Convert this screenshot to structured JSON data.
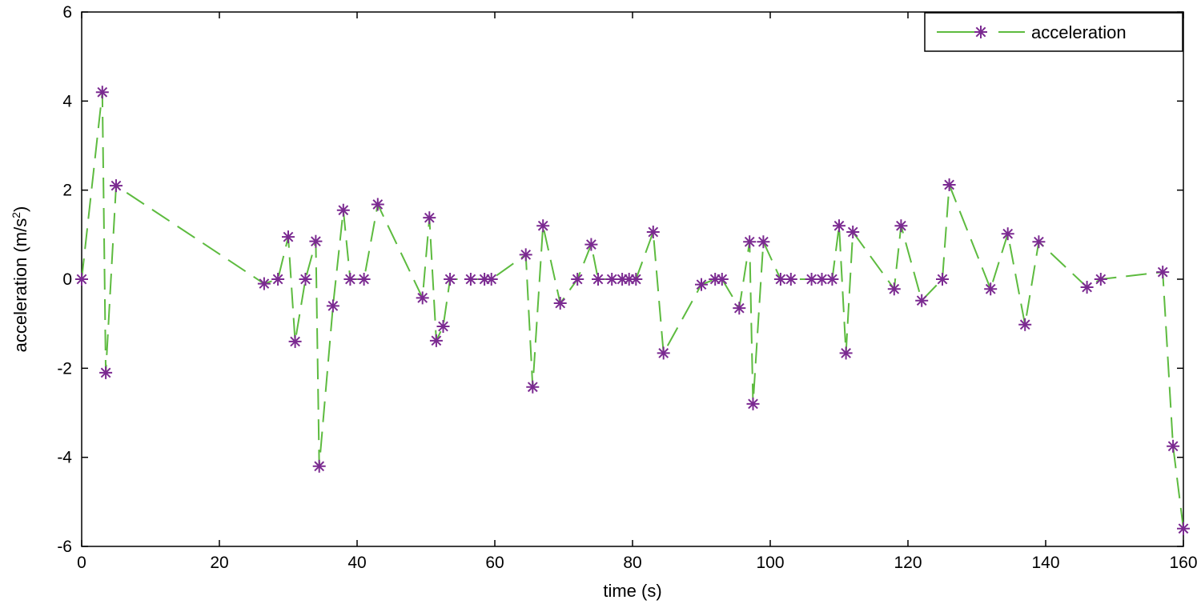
{
  "chart_data": {
    "type": "line",
    "title": "",
    "xlabel": "time (s)",
    "ylabel_main": "acceleration (m/s",
    "ylabel_sup": "2",
    "ylabel_tail": ")",
    "xlim": [
      0,
      160
    ],
    "ylim": [
      -6,
      6
    ],
    "xticks": [
      0,
      20,
      40,
      60,
      80,
      100,
      120,
      140,
      160
    ],
    "yticks": [
      -6,
      -4,
      -2,
      0,
      2,
      4,
      6
    ],
    "grid": false,
    "legend_position": "top-right",
    "colors": {
      "line": "#5dbb3f",
      "marker": "#7b2a91",
      "axis": "#000000"
    },
    "series": [
      {
        "name": "acceleration",
        "x": [
          0,
          3,
          3.5,
          5,
          26.5,
          28.5,
          30,
          31,
          32.5,
          34,
          34.5,
          36.5,
          38,
          39,
          41,
          43,
          49.5,
          50.5,
          51.5,
          52.5,
          53.5,
          56.5,
          58.5,
          59.5,
          64.5,
          65.5,
          67,
          69.5,
          72,
          74,
          75,
          77,
          78.5,
          79.5,
          80.5,
          83,
          84.5,
          90,
          92,
          93,
          95.5,
          97,
          97.5,
          99,
          101.5,
          103,
          106,
          107.5,
          109,
          110,
          111,
          112,
          118,
          119,
          122,
          125,
          126,
          132,
          134.5,
          137,
          139,
          146,
          148,
          157,
          158.5,
          160
        ],
        "y": [
          0,
          4.2,
          -2.1,
          2.1,
          -0.1,
          0,
          0.95,
          -1.4,
          0,
          0.85,
          -4.2,
          -0.6,
          1.55,
          0,
          0,
          1.68,
          -0.42,
          1.38,
          -1.38,
          -1.06,
          0,
          0,
          0,
          0,
          0.55,
          -2.42,
          1.2,
          -0.54,
          0,
          0.78,
          0,
          0,
          0,
          0,
          0,
          1.06,
          -1.66,
          -0.12,
          0,
          0,
          -0.65,
          0.84,
          -2.8,
          0.84,
          0,
          0,
          0,
          0,
          0,
          1.2,
          -1.66,
          1.06,
          -0.22,
          1.2,
          -0.48,
          0,
          2.12,
          -0.22,
          1.02,
          -1.02,
          0.84,
          -0.18,
          0,
          0.16,
          -3.75,
          -5.6
        ]
      }
    ]
  }
}
